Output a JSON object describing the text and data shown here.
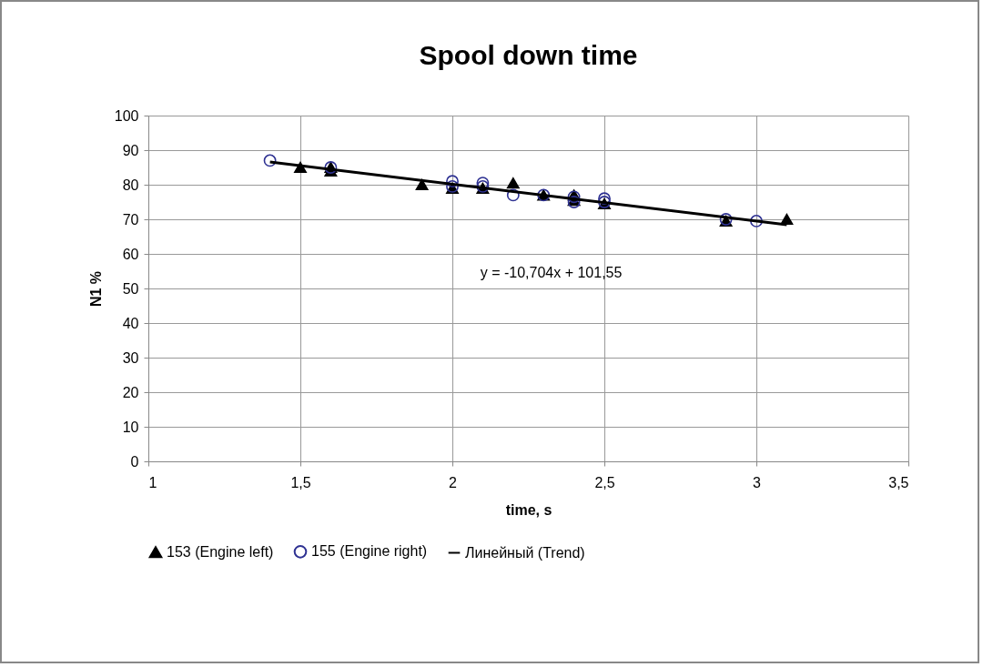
{
  "chart_data": {
    "type": "scatter",
    "title": "Spool down time",
    "xlabel": "time, s",
    "ylabel": "N1 %",
    "xlim": [
      1,
      3.5
    ],
    "xticks": [
      1,
      {
        "value": 1.5,
        "label": "1,5"
      },
      2,
      {
        "value": 2.5,
        "label": "2,5"
      },
      3,
      {
        "value": 3.5,
        "label": "3,5"
      }
    ],
    "ylim": [
      0,
      100
    ],
    "yticks": [
      0,
      10,
      20,
      30,
      40,
      50,
      60,
      70,
      80,
      90,
      100
    ],
    "grid": true,
    "legend": "bottom",
    "annotations": [
      "y = -10,704x + 101,55"
    ],
    "series": [
      {
        "name": "153 (Engine left)",
        "type": "scatter",
        "marker": "triangle",
        "color": "#000000",
        "x": [
          1.5,
          1.6,
          1.6,
          1.9,
          2.0,
          2.1,
          2.2,
          2.3,
          2.4,
          2.4,
          2.5,
          2.9,
          3.1
        ],
        "values": [
          85,
          85,
          84,
          80,
          79,
          79,
          80.5,
          77,
          77,
          75.5,
          74.5,
          69.5,
          70
        ]
      },
      {
        "name": "155 (Engine right)",
        "type": "scatter",
        "marker": "circle",
        "color": "#2e3192",
        "x": [
          1.4,
          1.6,
          2.0,
          2.0,
          2.1,
          2.1,
          2.2,
          2.3,
          2.4,
          2.4,
          2.5,
          2.5,
          2.9,
          3.0
        ],
        "values": [
          87,
          85,
          81,
          79.5,
          80.5,
          79.5,
          77,
          77,
          76.5,
          75,
          76,
          75,
          70,
          69.5
        ]
      },
      {
        "name": "Линейный (Trend)",
        "type": "line",
        "marker": "none",
        "line_style": "solid",
        "color": "#000000",
        "x": [
          1.4,
          3.1
        ],
        "values": [
          86.6,
          68.4
        ]
      }
    ]
  }
}
